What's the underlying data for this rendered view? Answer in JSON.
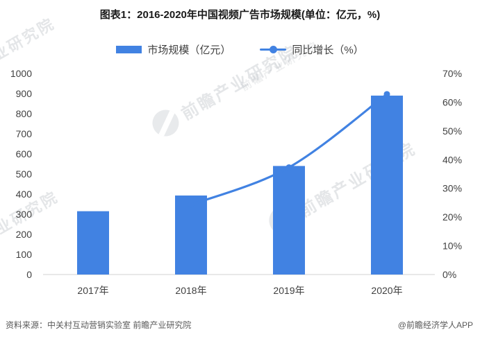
{
  "title": "图表1：2016-2020年中国视频广告市场规模(单位：亿元，%)",
  "legend": [
    {
      "label": "市场规模（亿元）",
      "marker": "bar-swatch"
    },
    {
      "label": "同比增长（%）",
      "marker": "line-dot-swatch"
    }
  ],
  "footer": {
    "source": "资料来源：中关村互动营销实验室 前瞻产业研究院",
    "credit": "@前瞻经济学人APP"
  },
  "watermark_text": "前瞻产业研究院",
  "colors": {
    "primary_blue": "#4182e2",
    "axis_text": "#404040",
    "baseline_gray": "#d9d9d9",
    "footer_text": "#595959",
    "watermark_gray": "#9aa0a8",
    "title_text": "#1a1a1a"
  },
  "chart_data": {
    "type": "bar",
    "subtype": "combo-bar-line-dual-axis",
    "title": "图表1：2016-2020年中国视频广告市场规模(单位：亿元，%)",
    "categories": [
      "2017年",
      "2018年",
      "2019年",
      "2020年"
    ],
    "series": [
      {
        "name": "市场规模（亿元）",
        "type": "bar",
        "axis": "left",
        "values": [
          315,
          393,
          540,
          890
        ]
      },
      {
        "name": "同比增长（%）",
        "type": "line",
        "axis": "right",
        "values": [
          null,
          24.3,
          37.3,
          62.8
        ]
      }
    ],
    "left_axis": {
      "min": 0,
      "max": 1000,
      "tick_step": 100,
      "ticks": [
        "0",
        "100",
        "200",
        "300",
        "400",
        "500",
        "600",
        "700",
        "800",
        "900",
        "1000"
      ]
    },
    "right_axis": {
      "min": 0,
      "max": 70,
      "tick_step": 10,
      "ticks": [
        "0%",
        "10%",
        "20%",
        "30%",
        "40%",
        "50%",
        "60%",
        "70%"
      ]
    },
    "grid": false,
    "legend_position": "top",
    "line_smooth": true
  }
}
